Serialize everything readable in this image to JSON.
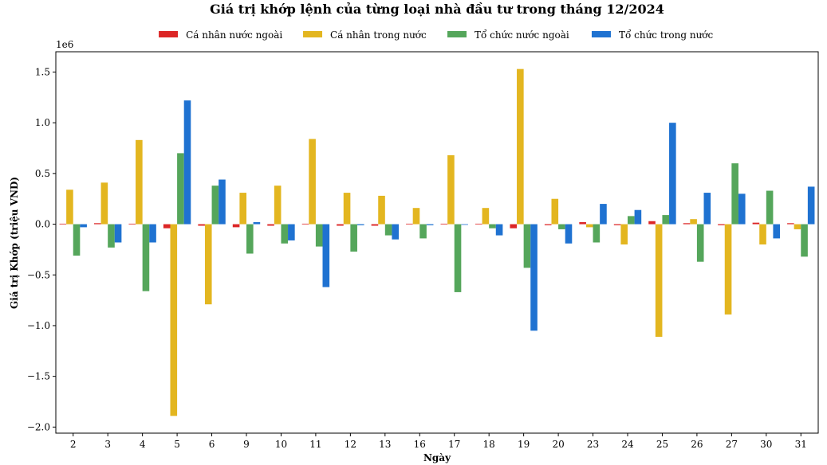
{
  "chart_data": {
    "type": "bar",
    "title": "Giá trị khớp lệnh của từng loại nhà đầu tư trong tháng 12/2024",
    "xlabel": "Ngày",
    "ylabel": "Giá trị Khớp (triệu VND)",
    "y_offset_label": "1e6",
    "ylim": [
      -2.06,
      1.7
    ],
    "y_scale": 1000000,
    "yticks": [
      -2.0,
      -1.5,
      -1.0,
      -0.5,
      0.0,
      0.5,
      1.0,
      1.5
    ],
    "ytick_labels": [
      "−2.0",
      "−1.5",
      "−1.0",
      "−0.5",
      "0.0",
      "0.5",
      "1.0",
      "1.5"
    ],
    "legend_position": "top-center",
    "grid": false,
    "categories": [
      "2",
      "3",
      "4",
      "5",
      "6",
      "9",
      "10",
      "11",
      "12",
      "13",
      "16",
      "17",
      "18",
      "19",
      "20",
      "23",
      "24",
      "25",
      "26",
      "27",
      "30",
      "31"
    ],
    "series": [
      {
        "name": "Cá nhân nước ngoài",
        "color": "#dc2626",
        "values": [
          0.005,
          0.01,
          0.005,
          -0.04,
          -0.015,
          -0.03,
          -0.015,
          0.005,
          -0.015,
          -0.015,
          0.005,
          0.005,
          0.005,
          -0.04,
          -0.01,
          0.02,
          -0.01,
          0.03,
          0.01,
          -0.01,
          0.015,
          0.01
        ]
      },
      {
        "name": "Cá nhân trong nước",
        "color": "#e3b620",
        "values": [
          0.34,
          0.41,
          0.83,
          -1.89,
          -0.79,
          0.31,
          0.38,
          0.84,
          0.31,
          0.28,
          0.16,
          0.68,
          0.16,
          1.53,
          0.25,
          -0.03,
          -0.2,
          -1.11,
          0.05,
          -0.89,
          -0.2,
          -0.05
        ]
      },
      {
        "name": "Tổ chức nước ngoài",
        "color": "#55a65b",
        "values": [
          -0.31,
          -0.23,
          -0.66,
          0.7,
          0.38,
          -0.29,
          -0.19,
          -0.22,
          -0.27,
          -0.11,
          -0.14,
          -0.67,
          -0.04,
          -0.43,
          -0.05,
          -0.18,
          0.08,
          0.09,
          -0.37,
          0.6,
          0.33,
          -0.32
        ]
      },
      {
        "name": "Tổ chức trong nước",
        "color": "#1f72d1",
        "values": [
          -0.03,
          -0.18,
          -0.18,
          1.22,
          0.44,
          0.02,
          -0.16,
          -0.62,
          -0.01,
          -0.15,
          -0.01,
          0.0,
          -0.11,
          -1.05,
          -0.19,
          0.2,
          0.14,
          1.0,
          0.31,
          0.3,
          -0.14,
          0.37
        ]
      }
    ]
  }
}
